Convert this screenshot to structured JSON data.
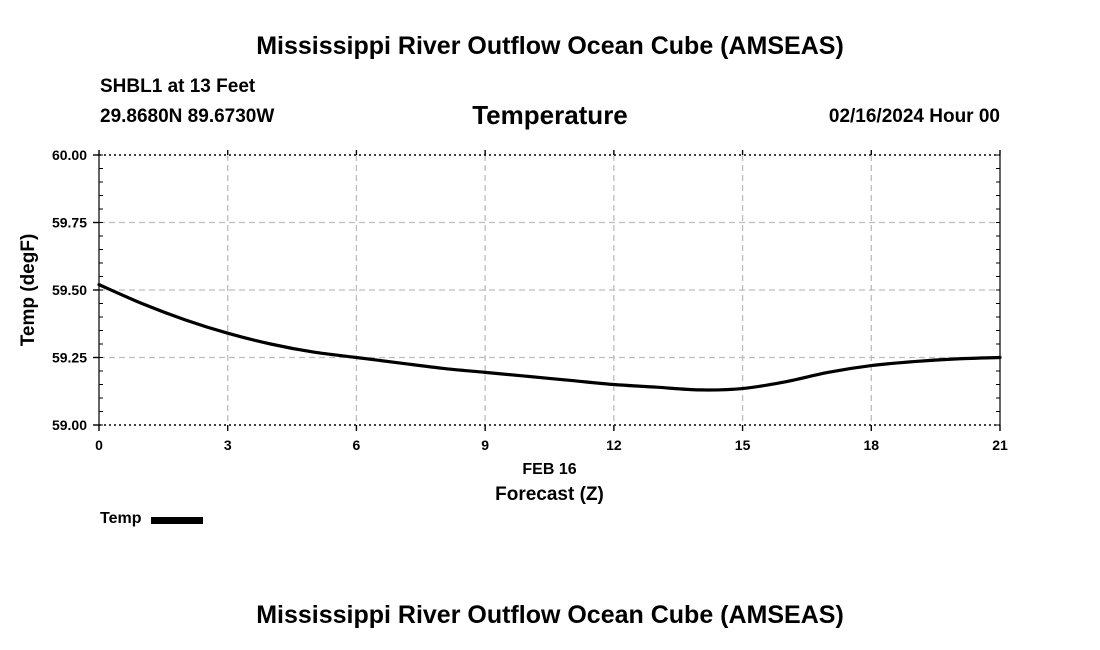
{
  "header": {
    "title": "Mississippi River Outflow Ocean Cube (AMSEAS)",
    "station": "SHBL1 at 13 Feet",
    "coordinates": "29.8680N  89.6730W",
    "variable": "Temperature",
    "datetime": "02/16/2024 Hour 00"
  },
  "footer": {
    "title": "Mississippi River Outflow Ocean Cube (AMSEAS)"
  },
  "chart_data": {
    "type": "line",
    "title": "Temperature",
    "xlabel": "Forecast (Z)",
    "xsublabel": "FEB 16",
    "ylabel": "Temp (degF)",
    "xlim": [
      0,
      21
    ],
    "ylim": [
      59.0,
      60.0
    ],
    "xticks": [
      0,
      3,
      6,
      9,
      12,
      15,
      18,
      21
    ],
    "yticks": [
      59.0,
      59.25,
      59.5,
      59.75,
      60.0
    ],
    "ytick_labels": [
      "59.00",
      "59.25",
      "59.50",
      "59.75",
      "60.00"
    ],
    "grid": true,
    "legend_position": "bottom-left",
    "series": [
      {
        "name": "Temp",
        "color": "#000000",
        "x": [
          0,
          1,
          2,
          3,
          4,
          5,
          6,
          7,
          8,
          9,
          10,
          11,
          12,
          13,
          14,
          15,
          16,
          17,
          18,
          19,
          20,
          21
        ],
        "y": [
          59.52,
          59.45,
          59.39,
          59.34,
          59.3,
          59.27,
          59.25,
          59.23,
          59.21,
          59.195,
          59.18,
          59.165,
          59.15,
          59.14,
          59.13,
          59.135,
          59.16,
          59.195,
          59.22,
          59.235,
          59.245,
          59.25
        ]
      }
    ]
  }
}
